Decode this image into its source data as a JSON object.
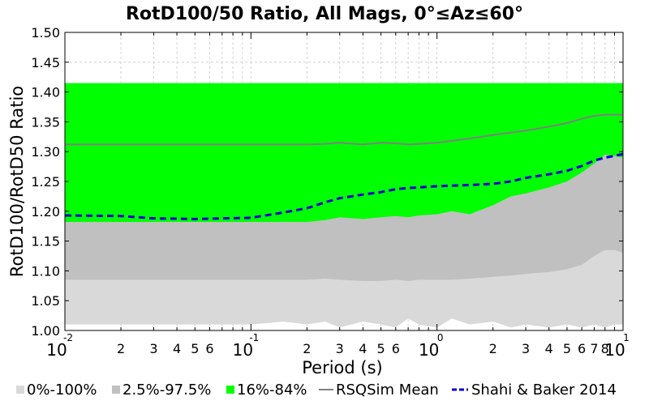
{
  "chart_data": {
    "type": "area",
    "title": "RotD100/50 Ratio, All Mags, 0°≤Az≤60°",
    "xlabel": "Period (s)",
    "ylabel": "RotD100/RotD50 Ratio",
    "xscale": "log",
    "xlim": [
      0.01,
      10
    ],
    "ylim": [
      1.0,
      1.5
    ],
    "yticks": [
      "1.00",
      "1.05",
      "1.10",
      "1.15",
      "1.20",
      "1.25",
      "1.30",
      "1.35",
      "1.40",
      "1.45",
      "1.50"
    ],
    "xticks_major": [
      {
        "base": "10",
        "exp": "-2"
      },
      {
        "base": "10",
        "exp": "-1"
      },
      {
        "base": "10",
        "exp": "0"
      },
      {
        "base": "10",
        "exp": "1"
      }
    ],
    "xticks_minor_labels": [
      "2",
      "3",
      "4",
      "5",
      "6"
    ],
    "xticks_minor_labels_last_decade": [
      "2",
      "3",
      "4",
      "5",
      "6",
      "7",
      "8"
    ],
    "grid": true,
    "legend_position": "bottom",
    "x": [
      0.01,
      0.02,
      0.03,
      0.05,
      0.07,
      0.1,
      0.15,
      0.2,
      0.25,
      0.3,
      0.4,
      0.5,
      0.6,
      0.7,
      0.8,
      1.0,
      1.2,
      1.5,
      2.0,
      2.5,
      3.0,
      4.0,
      5.0,
      6.0,
      7.0,
      8.0,
      9.0,
      10.0
    ],
    "series": [
      {
        "name": "0%-100%",
        "kind": "band",
        "color": "#d9d9d9",
        "lower": [
          1.01,
          1.01,
          1.01,
          1.01,
          1.01,
          1.01,
          1.015,
          1.01,
          1.015,
          1.005,
          1.015,
          1.01,
          1.005,
          1.02,
          1.01,
          1.005,
          1.02,
          1.01,
          1.015,
          1.005,
          1.01,
          1.005,
          1.01,
          1.005,
          1.01,
          1.005,
          1.01,
          1.01
        ],
        "upper": [
          1.415,
          1.415,
          1.415,
          1.415,
          1.415,
          1.415,
          1.415,
          1.415,
          1.415,
          1.415,
          1.415,
          1.415,
          1.415,
          1.413,
          1.413,
          1.414,
          1.415,
          1.415,
          1.415,
          1.415,
          1.415,
          1.415,
          1.415,
          1.415,
          1.415,
          1.415,
          1.415,
          1.415
        ]
      },
      {
        "name": "2.5%-97.5%",
        "kind": "band",
        "color": "#c0c0c0",
        "lower": [
          1.085,
          1.085,
          1.085,
          1.085,
          1.085,
          1.085,
          1.085,
          1.085,
          1.087,
          1.085,
          1.083,
          1.083,
          1.085,
          1.083,
          1.085,
          1.085,
          1.085,
          1.087,
          1.09,
          1.092,
          1.095,
          1.098,
          1.103,
          1.11,
          1.125,
          1.135,
          1.135,
          1.13
        ],
        "upper": [
          1.415,
          1.415,
          1.415,
          1.415,
          1.415,
          1.415,
          1.415,
          1.415,
          1.415,
          1.415,
          1.415,
          1.415,
          1.415,
          1.415,
          1.415,
          1.415,
          1.415,
          1.415,
          1.415,
          1.415,
          1.415,
          1.415,
          1.415,
          1.415,
          1.415,
          1.415,
          1.415,
          1.415
        ]
      },
      {
        "name": "16%-84%",
        "kind": "band",
        "color": "#00ff00",
        "lower": [
          1.182,
          1.182,
          1.182,
          1.182,
          1.182,
          1.182,
          1.182,
          1.182,
          1.185,
          1.19,
          1.187,
          1.19,
          1.192,
          1.19,
          1.193,
          1.195,
          1.2,
          1.195,
          1.21,
          1.225,
          1.23,
          1.24,
          1.25,
          1.265,
          1.28,
          1.295,
          1.293,
          1.29
        ],
        "upper": [
          1.415,
          1.415,
          1.415,
          1.415,
          1.415,
          1.415,
          1.415,
          1.415,
          1.415,
          1.415,
          1.415,
          1.415,
          1.415,
          1.415,
          1.415,
          1.415,
          1.415,
          1.415,
          1.415,
          1.415,
          1.415,
          1.415,
          1.415,
          1.415,
          1.415,
          1.415,
          1.415,
          1.415
        ]
      },
      {
        "name": "RSQSim Mean",
        "kind": "line",
        "color": "#808080",
        "values": [
          1.312,
          1.312,
          1.312,
          1.312,
          1.312,
          1.312,
          1.312,
          1.312,
          1.313,
          1.315,
          1.312,
          1.315,
          1.314,
          1.312,
          1.313,
          1.315,
          1.318,
          1.322,
          1.328,
          1.332,
          1.335,
          1.342,
          1.348,
          1.355,
          1.36,
          1.362,
          1.362,
          1.362
        ]
      },
      {
        "name": "Shahi & Baker 2014",
        "kind": "dashed-line",
        "color": "#0000cc",
        "values": [
          1.193,
          1.192,
          1.188,
          1.187,
          1.188,
          1.189,
          1.198,
          1.205,
          1.215,
          1.222,
          1.228,
          1.232,
          1.237,
          1.239,
          1.24,
          1.242,
          1.243,
          1.244,
          1.246,
          1.25,
          1.256,
          1.262,
          1.268,
          1.276,
          1.285,
          1.29,
          1.293,
          1.296
        ]
      }
    ]
  }
}
